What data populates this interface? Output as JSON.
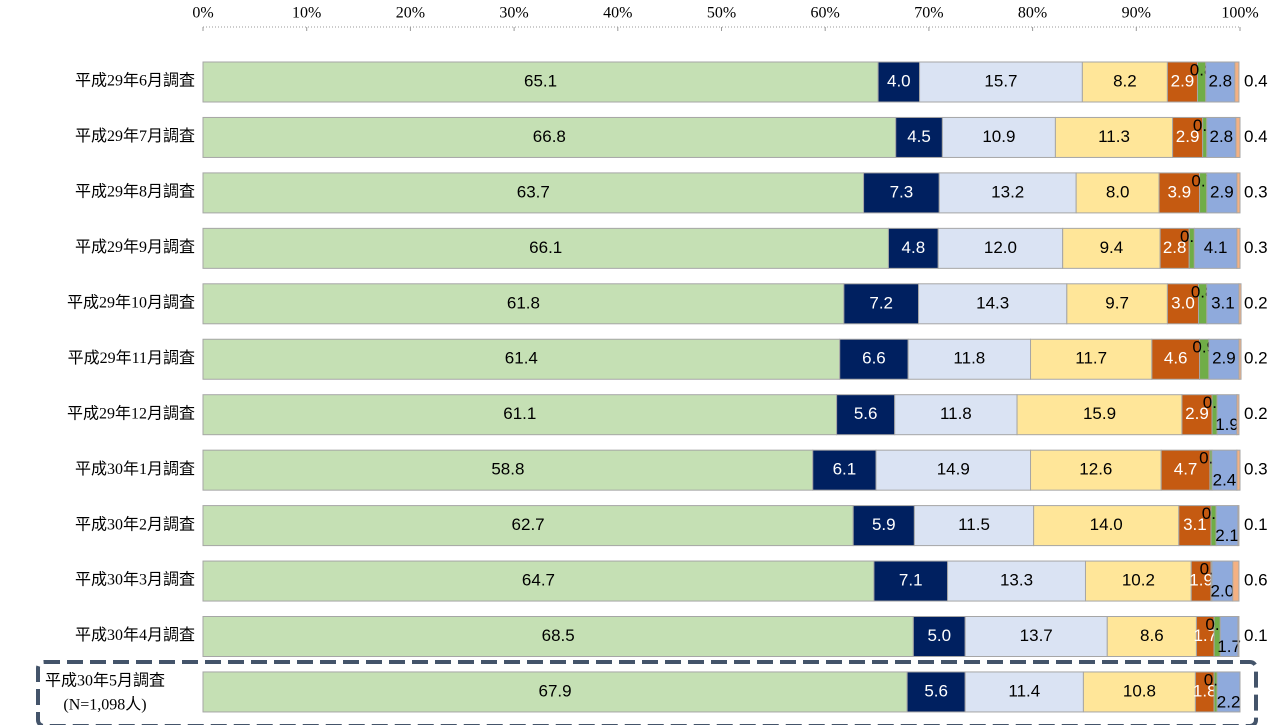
{
  "chart_data": {
    "type": "stacked-barh",
    "categories": [
      "平成29年6月調査",
      "平成29年7月調査",
      "平成29年8月調査",
      "平成29年9月調査",
      "平成29年10月調査",
      "平成29年11月調査",
      "平成29年12月調査",
      "平成30年1月調査",
      "平成30年2月調査",
      "平成30年3月調査",
      "平成30年4月調査",
      "平成30年5月調査"
    ],
    "note": "(N=1,098人)",
    "xlim": [
      0,
      100
    ],
    "xticks": [
      {
        "value": 0,
        "label": "0%"
      },
      {
        "value": 10,
        "label": "10%"
      },
      {
        "value": 20,
        "label": "20%"
      },
      {
        "value": 30,
        "label": "30%"
      },
      {
        "value": 40,
        "label": "40%"
      },
      {
        "value": 50,
        "label": "50%"
      },
      {
        "value": 60,
        "label": "60%"
      },
      {
        "value": 70,
        "label": "70%"
      },
      {
        "value": 80,
        "label": "80%"
      },
      {
        "value": 90,
        "label": "90%"
      },
      {
        "value": 100,
        "label": "100%"
      }
    ],
    "series": [
      {
        "color": "#c5e0b4",
        "values": [
          65.1,
          66.8,
          63.7,
          66.1,
          61.8,
          61.4,
          61.1,
          58.8,
          62.7,
          64.7,
          68.5,
          67.9
        ],
        "value_labels": [
          "65.1",
          "66.8",
          "63.7",
          "66.1",
          "61.8",
          "61.4",
          "61.1",
          "58.8",
          "62.7",
          "64.7",
          "68.5",
          "67.9"
        ]
      },
      {
        "color": "#002060",
        "values": [
          4.0,
          4.5,
          7.3,
          4.8,
          7.2,
          6.6,
          5.6,
          6.1,
          5.9,
          7.1,
          5.0,
          5.6
        ],
        "value_labels": [
          "4.0",
          "4.5",
          "7.3",
          "4.8",
          "7.2",
          "6.6",
          "5.6",
          "6.1",
          "5.9",
          "7.1",
          "5.0",
          "5.6"
        ]
      },
      {
        "color": "#dae3f3",
        "values": [
          15.7,
          10.9,
          13.2,
          12.0,
          14.3,
          11.8,
          11.8,
          14.9,
          11.5,
          13.3,
          13.7,
          11.4
        ],
        "value_labels": [
          "15.7",
          "10.9",
          "13.2",
          "12.0",
          "14.3",
          "11.8",
          "11.8",
          "14.9",
          "11.5",
          "13.3",
          "13.7",
          "11.4"
        ]
      },
      {
        "color": "#ffe699",
        "values": [
          8.2,
          11.3,
          8.0,
          9.4,
          9.7,
          11.7,
          15.9,
          12.6,
          14.0,
          10.2,
          8.6,
          10.8
        ],
        "value_labels": [
          "8.2",
          "11.3",
          "8.0",
          "9.4",
          "9.7",
          "11.7",
          "15.9",
          "12.6",
          "14.0",
          "10.2",
          "8.6",
          "10.8"
        ]
      },
      {
        "color": "#c55a11",
        "values": [
          2.9,
          2.9,
          3.9,
          2.8,
          3.0,
          4.6,
          2.9,
          4.7,
          3.1,
          1.9,
          1.7,
          1.8
        ],
        "value_labels": [
          "2.9",
          "2.9",
          "3.9",
          "2.8",
          "3.0",
          "4.6",
          "2.9",
          "4.7",
          "3.1",
          "1.9",
          "1.7",
          "1.8"
        ]
      },
      {
        "color": "#70ad47",
        "values": [
          0.8,
          0.4,
          0.7,
          0.5,
          0.8,
          0.9,
          0.5,
          0.2,
          0.5,
          0.1,
          0.6,
          0.3
        ],
        "value_labels": [
          "0.8",
          "0.4",
          "0.7",
          "0.5",
          "0.8",
          "0.9",
          "0.5",
          "0.2",
          "0.5",
          "0.1",
          "0.6",
          "0.3"
        ]
      },
      {
        "color": "#8faadc",
        "values": [
          2.8,
          2.8,
          2.9,
          4.1,
          3.1,
          2.9,
          1.9,
          2.4,
          2.1,
          2.0,
          1.7,
          2.2
        ],
        "value_labels": [
          "2.8",
          "2.8",
          "2.9",
          "4.1",
          "3.1",
          "2.9",
          "1.9",
          "2.4",
          "2.1",
          "2.0",
          "1.7",
          "2.2"
        ]
      },
      {
        "color": "#f4b183",
        "values": [
          0.4,
          0.4,
          0.3,
          0.3,
          0.2,
          0.2,
          0.2,
          0.3,
          0.1,
          0.6,
          0.1,
          null
        ],
        "value_labels": [
          "0.4",
          "0.4",
          "0.3",
          "0.3",
          "0.2",
          "0.2",
          "0.2",
          "0.3",
          "0.1",
          "0.6",
          "0.1",
          null
        ]
      }
    ]
  }
}
